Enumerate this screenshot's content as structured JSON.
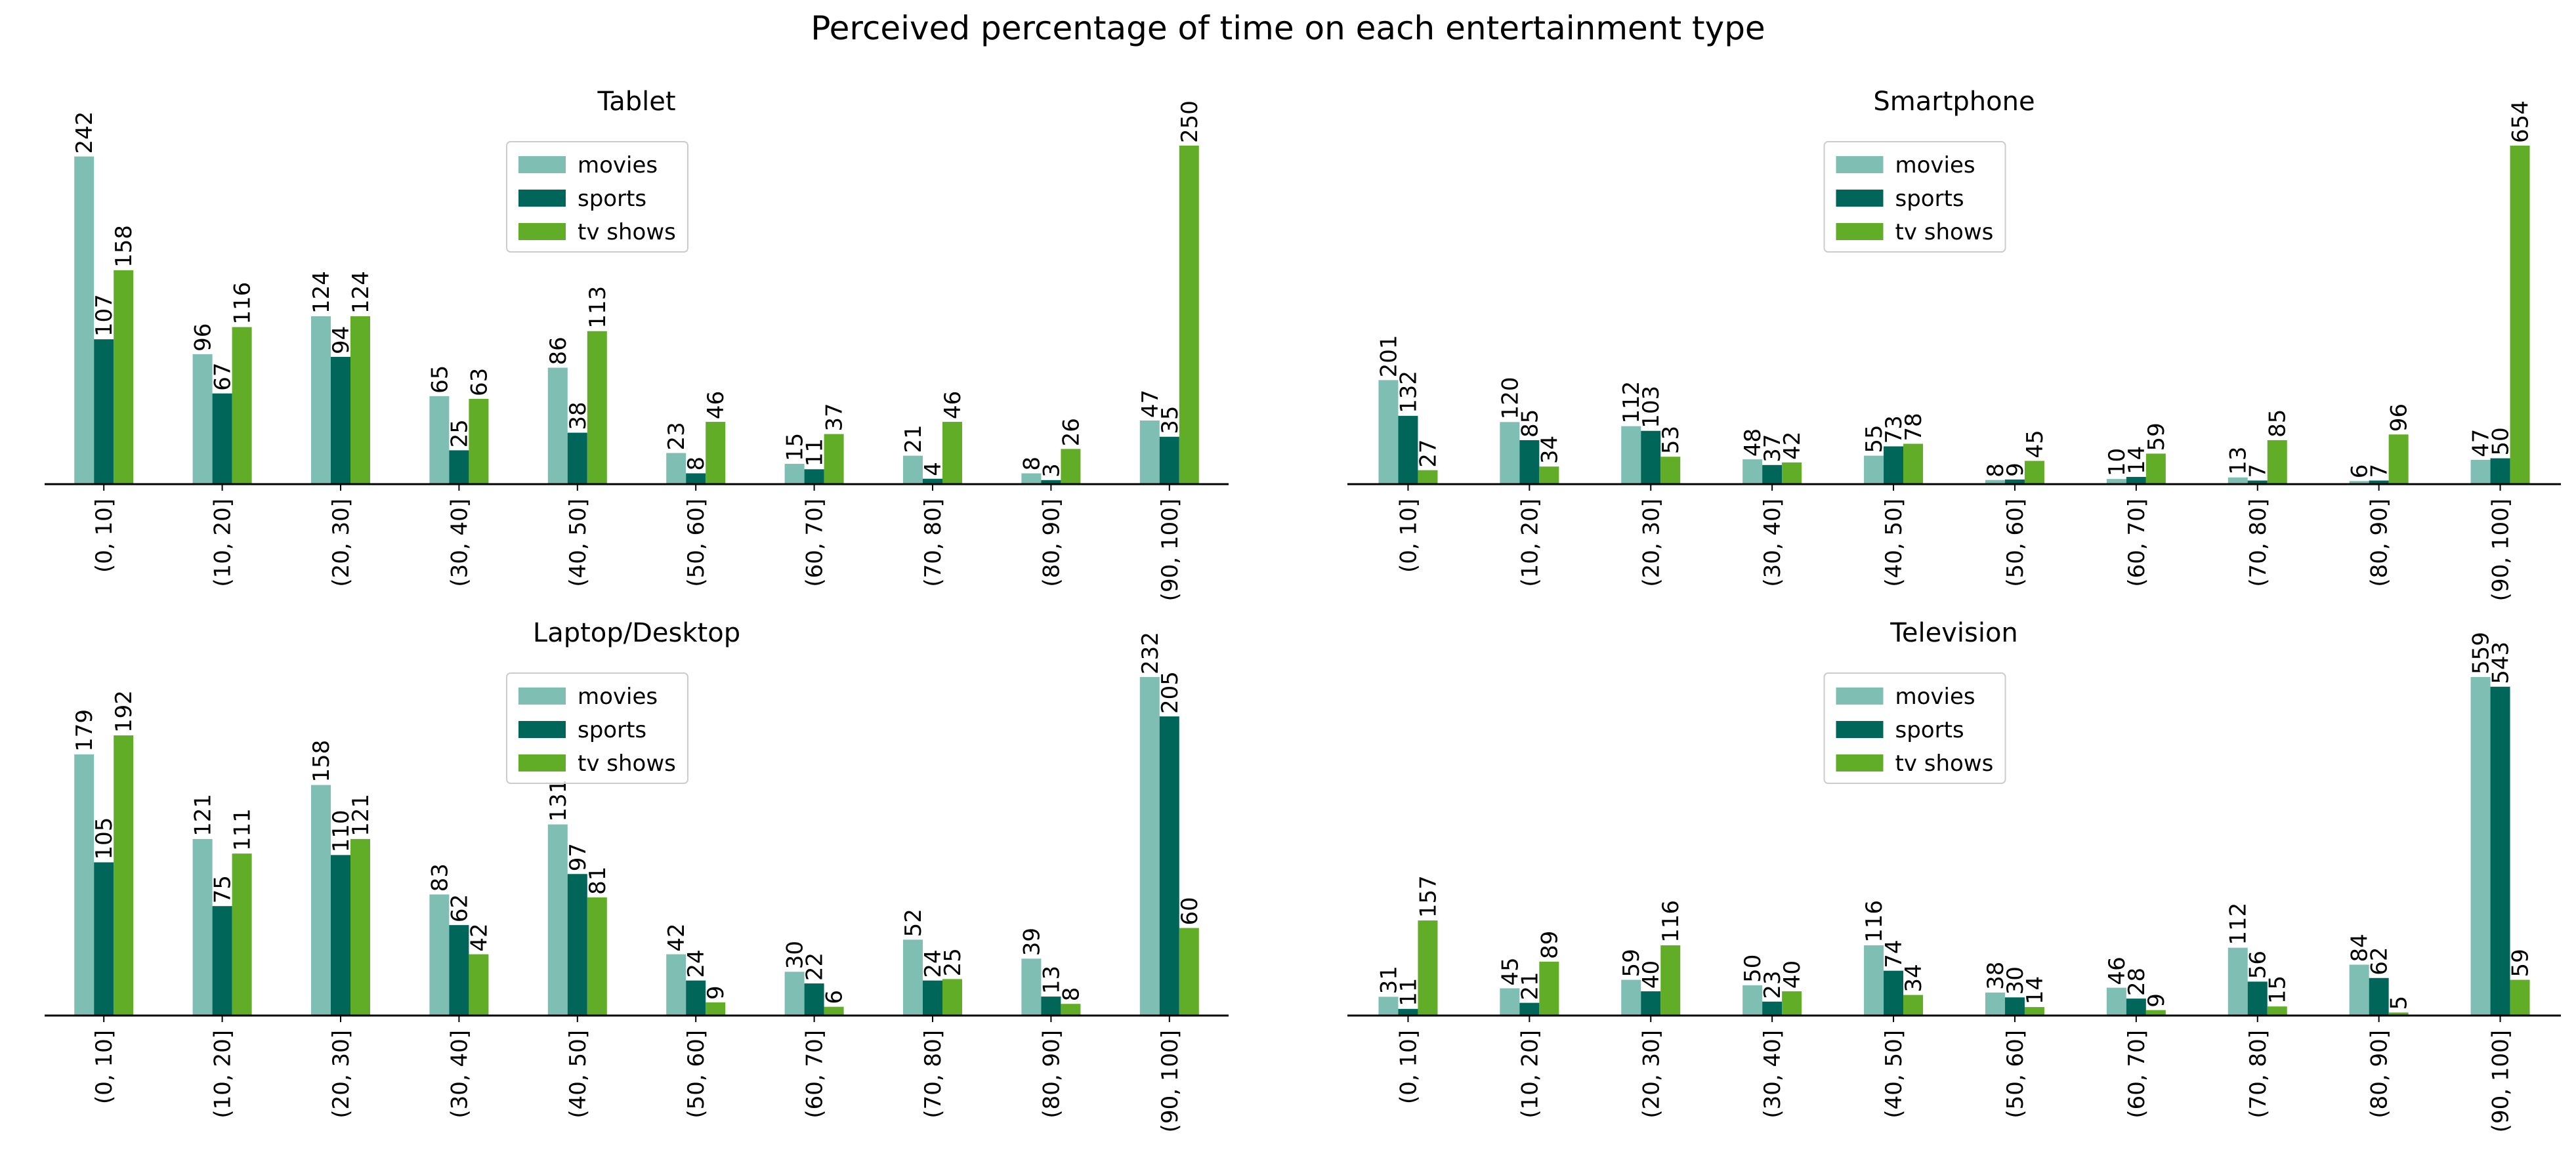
{
  "figure_title": "Perceived percentage of time on each entertainment type",
  "colors": {
    "movies": "#7fbfb3",
    "sports": "#00665a",
    "tv shows": "#62ad27",
    "axis": "#000000",
    "legend_border": "#cccccc"
  },
  "chart_data": [
    {
      "type": "bar",
      "title": "Tablet",
      "categories": [
        "(0, 10]",
        "(10, 20]",
        "(20, 30]",
        "(30, 40]",
        "(40, 50]",
        "(50, 60]",
        "(60, 70]",
        "(70, 80]",
        "(80, 90]",
        "(90, 100]"
      ],
      "series": [
        {
          "name": "movies",
          "values": [
            242,
            96,
            124,
            65,
            86,
            23,
            15,
            21,
            8,
            47
          ]
        },
        {
          "name": "sports",
          "values": [
            107,
            67,
            94,
            25,
            38,
            8,
            11,
            4,
            3,
            35
          ]
        },
        {
          "name": "tv shows",
          "values": [
            158,
            116,
            124,
            63,
            113,
            46,
            37,
            46,
            26,
            250
          ]
        }
      ],
      "ylim": [
        0,
        250
      ],
      "legend": "upper-center",
      "grid": false
    },
    {
      "type": "bar",
      "title": "Smartphone",
      "categories": [
        "(0, 10]",
        "(10, 20]",
        "(20, 30]",
        "(30, 40]",
        "(40, 50]",
        "(50, 60]",
        "(60, 70]",
        "(70, 80]",
        "(80, 90]",
        "(90, 100]"
      ],
      "series": [
        {
          "name": "movies",
          "values": [
            201,
            120,
            112,
            48,
            55,
            8,
            10,
            13,
            6,
            47
          ]
        },
        {
          "name": "sports",
          "values": [
            132,
            85,
            103,
            37,
            73,
            9,
            14,
            7,
            7,
            50
          ]
        },
        {
          "name": "tv shows",
          "values": [
            27,
            34,
            53,
            42,
            78,
            45,
            59,
            85,
            96,
            654
          ]
        }
      ],
      "ylim": [
        0,
        654
      ],
      "legend": "upper-center",
      "grid": false
    },
    {
      "type": "bar",
      "title": "Laptop/Desktop",
      "categories": [
        "(0, 10]",
        "(10, 20]",
        "(20, 30]",
        "(30, 40]",
        "(40, 50]",
        "(50, 60]",
        "(60, 70]",
        "(70, 80]",
        "(80, 90]",
        "(90, 100]"
      ],
      "series": [
        {
          "name": "movies",
          "values": [
            179,
            121,
            158,
            83,
            131,
            42,
            30,
            52,
            39,
            232
          ]
        },
        {
          "name": "sports",
          "values": [
            105,
            75,
            110,
            62,
            97,
            24,
            22,
            24,
            13,
            205
          ]
        },
        {
          "name": "tv shows",
          "values": [
            192,
            111,
            121,
            42,
            81,
            9,
            6,
            25,
            8,
            60
          ]
        }
      ],
      "ylim": [
        0,
        232
      ],
      "legend": "upper-center",
      "grid": false
    },
    {
      "type": "bar",
      "title": "Television",
      "categories": [
        "(0, 10]",
        "(10, 20]",
        "(20, 30]",
        "(30, 40]",
        "(40, 50]",
        "(50, 60]",
        "(60, 70]",
        "(70, 80]",
        "(80, 90]",
        "(90, 100]"
      ],
      "series": [
        {
          "name": "movies",
          "values": [
            31,
            45,
            59,
            50,
            116,
            38,
            46,
            112,
            84,
            559
          ]
        },
        {
          "name": "sports",
          "values": [
            11,
            21,
            40,
            23,
            74,
            30,
            28,
            56,
            62,
            543
          ]
        },
        {
          "name": "tv shows",
          "values": [
            157,
            89,
            116,
            40,
            34,
            14,
            9,
            15,
            5,
            59
          ]
        }
      ],
      "ylim": [
        0,
        559
      ],
      "legend": "upper-center",
      "grid": false
    }
  ]
}
